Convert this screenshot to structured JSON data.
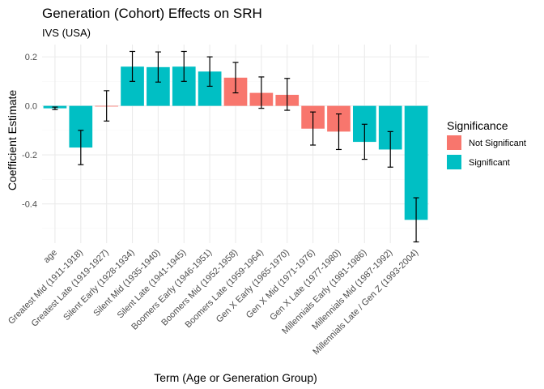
{
  "chart_data": {
    "type": "bar",
    "title": "Generation (Cohort) Effects on SRH",
    "subtitle": "IVS (USA)",
    "xlabel": "Term (Age or Generation Group)",
    "ylabel": "Coefficient Estimate",
    "ylim": [
      -0.56,
      0.25
    ],
    "yticks": [
      -0.4,
      -0.2,
      0.0,
      0.2
    ],
    "ytick_labels": [
      "-0.4",
      "-0.2",
      "0.0",
      "0.2"
    ],
    "grid": true,
    "legend": {
      "title": "Significance",
      "position": "right",
      "items": [
        {
          "label": "Not Significant",
          "color": "#F8766D"
        },
        {
          "label": "Significant",
          "color": "#00BFC4"
        }
      ]
    },
    "categories": [
      "age",
      "Greatest Mid (1911-1918)",
      "Greatest Late (1919-1927)",
      "Silent Early (1928-1934)",
      "Silent Mid (1935-1940)",
      "Silent Late (1941-1945)",
      "Boomers Early (1946-1951)",
      "Boomers Mid (1952-1958)",
      "Boomers Late (1959-1964)",
      "Gen X Early (1965-1970)",
      "Gen X Mid (1971-1976)",
      "Gen X Late (1977-1980)",
      "Millennials Early (1981-1986)",
      "Millennials Mid (1987-1992)",
      "Millennials Late / Gen Z (1993-2004)"
    ],
    "values": [
      -0.01,
      -0.17,
      0.0,
      0.16,
      0.158,
      0.16,
      0.14,
      0.115,
      0.053,
      0.045,
      -0.093,
      -0.105,
      -0.147,
      -0.178,
      -0.465
    ],
    "error_low": [
      -0.015,
      -0.24,
      -0.062,
      0.1,
      0.097,
      0.1,
      0.08,
      0.053,
      -0.01,
      -0.018,
      -0.16,
      -0.178,
      -0.218,
      -0.25,
      -0.555
    ],
    "error_high": [
      -0.005,
      -0.1,
      0.062,
      0.222,
      0.22,
      0.222,
      0.2,
      0.177,
      0.118,
      0.112,
      -0.025,
      -0.033,
      -0.075,
      -0.105,
      -0.375
    ],
    "significance": [
      "Significant",
      "Significant",
      "Not Significant",
      "Significant",
      "Significant",
      "Significant",
      "Significant",
      "Not Significant",
      "Not Significant",
      "Not Significant",
      "Not Significant",
      "Not Significant",
      "Significant",
      "Significant",
      "Significant"
    ],
    "colors": {
      "Not Significant": "#F8766D",
      "Significant": "#00BFC4"
    }
  }
}
